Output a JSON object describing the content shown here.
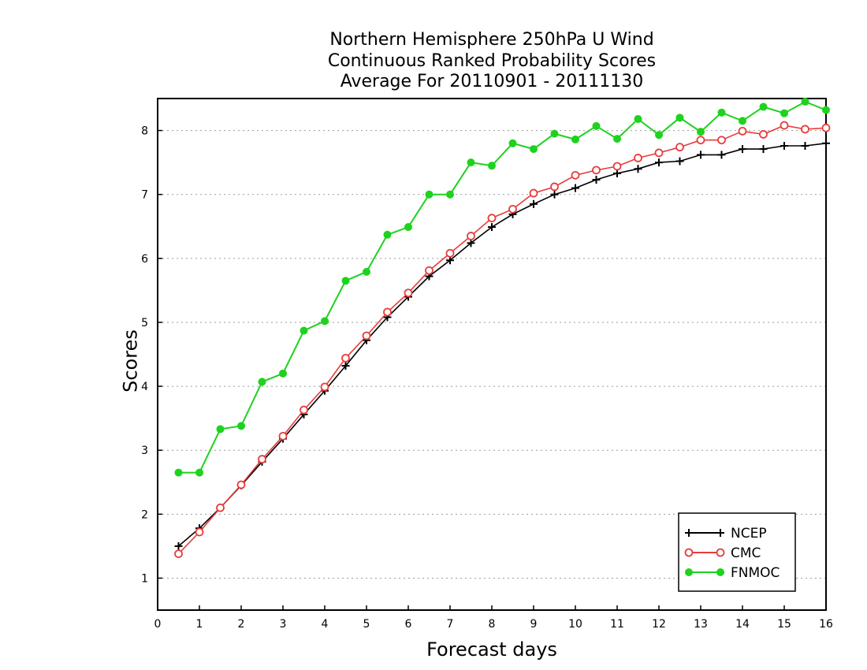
{
  "chart_data": {
    "type": "line",
    "title_lines": [
      "Northern Hemisphere 250hPa U Wind",
      "Continuous Ranked Probability Scores",
      "Average For 20110901 - 20111130"
    ],
    "xlabel": "Forecast days",
    "ylabel": "Scores",
    "xlim": [
      0,
      16
    ],
    "ylim": [
      0.5,
      8.5
    ],
    "xticks": [
      0,
      1,
      2,
      3,
      4,
      5,
      6,
      7,
      8,
      9,
      10,
      11,
      12,
      13,
      14,
      15,
      16
    ],
    "yticks": [
      1,
      2,
      3,
      4,
      5,
      6,
      7,
      8
    ],
    "grid": "horizontal dotted",
    "legend_position": "bottom-right",
    "x": [
      0.5,
      1,
      1.5,
      2,
      2.5,
      3,
      3.5,
      4,
      4.5,
      5,
      5.5,
      6,
      6.5,
      7,
      7.5,
      8,
      8.5,
      9,
      9.5,
      10,
      10.5,
      11,
      11.5,
      12,
      12.5,
      13,
      13.5,
      14,
      14.5,
      15,
      15.5,
      16
    ],
    "series": [
      {
        "name": "NCEP",
        "color": "#000000",
        "marker": "plus",
        "values": [
          1.5,
          1.78,
          2.1,
          2.45,
          2.82,
          3.18,
          3.56,
          3.93,
          4.32,
          4.72,
          5.08,
          5.4,
          5.72,
          5.97,
          6.24,
          6.49,
          6.69,
          6.85,
          7.0,
          7.1,
          7.23,
          7.33,
          7.4,
          7.5,
          7.52,
          7.62,
          7.62,
          7.71,
          7.71,
          7.76,
          7.76,
          7.8
        ]
      },
      {
        "name": "CMC",
        "color": "#e83c3c",
        "marker": "open-circle",
        "values": [
          1.38,
          1.72,
          2.1,
          2.46,
          2.86,
          3.22,
          3.63,
          3.99,
          4.44,
          4.79,
          5.16,
          5.46,
          5.81,
          6.08,
          6.35,
          6.63,
          6.77,
          7.02,
          7.12,
          7.3,
          7.38,
          7.44,
          7.57,
          7.65,
          7.74,
          7.85,
          7.85,
          7.99,
          7.94,
          8.08,
          8.02,
          8.04
        ]
      },
      {
        "name": "FNMOC",
        "color": "#1ed21e",
        "marker": "filled-circle",
        "values": [
          2.65,
          2.65,
          3.33,
          3.38,
          4.07,
          4.2,
          4.87,
          5.02,
          5.65,
          5.79,
          6.37,
          6.49,
          7.0,
          7.0,
          7.5,
          7.45,
          7.8,
          7.71,
          7.95,
          7.86,
          8.07,
          7.87,
          8.18,
          7.93,
          8.2,
          7.98,
          8.28,
          8.15,
          8.37,
          8.27,
          8.45,
          8.32
        ]
      }
    ]
  }
}
